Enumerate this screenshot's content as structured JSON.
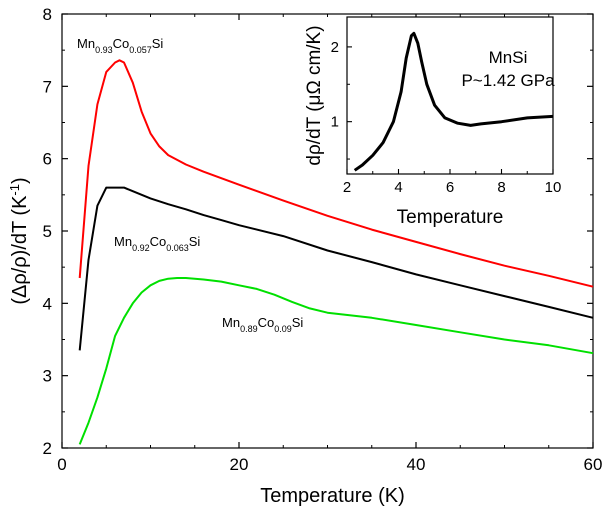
{
  "chart_data": [
    {
      "type": "line",
      "xlabel": "Temperature (K)",
      "ylabel_parts": [
        "(Δρ/ρ)/dT (K",
        "-1",
        ")"
      ],
      "xlim": [
        0,
        60
      ],
      "ylim": [
        2,
        8
      ],
      "xticks": [
        "0",
        "20",
        "40",
        "60"
      ],
      "yticks": [
        "2",
        "3",
        "4",
        "5",
        "6",
        "7",
        "8"
      ],
      "grid": false,
      "series": [
        {
          "label_parts": [
            {
              "t": "Mn",
              "s": false
            },
            {
              "t": "0.93",
              "s": true
            },
            {
              "t": "Co",
              "s": false
            },
            {
              "t": "0.057",
              "s": true
            },
            {
              "t": "Si",
              "s": false
            }
          ],
          "color": "#ff0000",
          "x": [
            2,
            3,
            4,
            5,
            6,
            6.5,
            7,
            8,
            9,
            10,
            11,
            12,
            14,
            16,
            18,
            20,
            25,
            30,
            35,
            40,
            45,
            50,
            55,
            60
          ],
          "y": [
            4.35,
            5.9,
            6.75,
            7.2,
            7.33,
            7.36,
            7.33,
            7.05,
            6.65,
            6.35,
            6.17,
            6.05,
            5.92,
            5.82,
            5.73,
            5.64,
            5.42,
            5.21,
            5.02,
            4.85,
            4.68,
            4.52,
            4.38,
            4.23
          ]
        },
        {
          "label_parts": [
            {
              "t": "Mn",
              "s": false
            },
            {
              "t": "0.92",
              "s": true
            },
            {
              "t": "Co",
              "s": false
            },
            {
              "t": "0.063",
              "s": true
            },
            {
              "t": "Si",
              "s": false
            }
          ],
          "color": "#000000",
          "x": [
            2,
            3,
            4,
            5,
            6,
            7,
            8,
            10,
            12,
            14,
            16,
            18,
            20,
            25,
            30,
            35,
            40,
            45,
            50,
            55,
            60
          ],
          "y": [
            3.35,
            4.6,
            5.35,
            5.6,
            5.6,
            5.6,
            5.55,
            5.45,
            5.37,
            5.3,
            5.22,
            5.15,
            5.08,
            4.93,
            4.73,
            4.57,
            4.4,
            4.25,
            4.1,
            3.95,
            3.8
          ]
        },
        {
          "label_parts": [
            {
              "t": "Mn",
              "s": false
            },
            {
              "t": "0.89",
              "s": true
            },
            {
              "t": "Co",
              "s": false
            },
            {
              "t": "0.09",
              "s": true
            },
            {
              "t": "Si",
              "s": false
            }
          ],
          "color": "#00e000",
          "x": [
            2,
            3,
            4,
            5,
            6,
            7,
            8,
            9,
            10,
            11,
            12,
            13,
            14,
            16,
            18,
            20,
            22,
            24,
            26,
            28,
            30,
            35,
            40,
            45,
            50,
            55,
            60
          ],
          "y": [
            2.05,
            2.35,
            2.7,
            3.1,
            3.55,
            3.8,
            4.0,
            4.15,
            4.25,
            4.31,
            4.34,
            4.35,
            4.35,
            4.33,
            4.3,
            4.25,
            4.2,
            4.12,
            4.02,
            3.93,
            3.87,
            3.8,
            3.7,
            3.6,
            3.5,
            3.42,
            3.31
          ]
        }
      ]
    },
    {
      "type": "line",
      "xlabel": "Temperature",
      "ylabel_parts": [
        "dρ/dT (μΩ cm/K)"
      ],
      "xlim": [
        2,
        10
      ],
      "ylim": [
        0.3,
        2.4
      ],
      "xticks": [
        2,
        4,
        6,
        8,
        10
      ],
      "yticks": [
        1,
        2
      ],
      "text_lines": [
        "MnSi",
        "P~1.42 GPa"
      ],
      "series": [
        {
          "color": "#000000",
          "x": [
            2.3,
            2.6,
            3.0,
            3.4,
            3.8,
            4.1,
            4.3,
            4.5,
            4.6,
            4.75,
            4.9,
            5.1,
            5.4,
            5.8,
            6.3,
            6.8,
            7.2,
            8.0,
            9.0,
            10.0
          ],
          "y": [
            0.35,
            0.42,
            0.55,
            0.72,
            1.0,
            1.4,
            1.85,
            2.15,
            2.18,
            2.05,
            1.8,
            1.5,
            1.22,
            1.05,
            0.98,
            0.95,
            0.97,
            1.0,
            1.05,
            1.07
          ]
        }
      ]
    }
  ]
}
